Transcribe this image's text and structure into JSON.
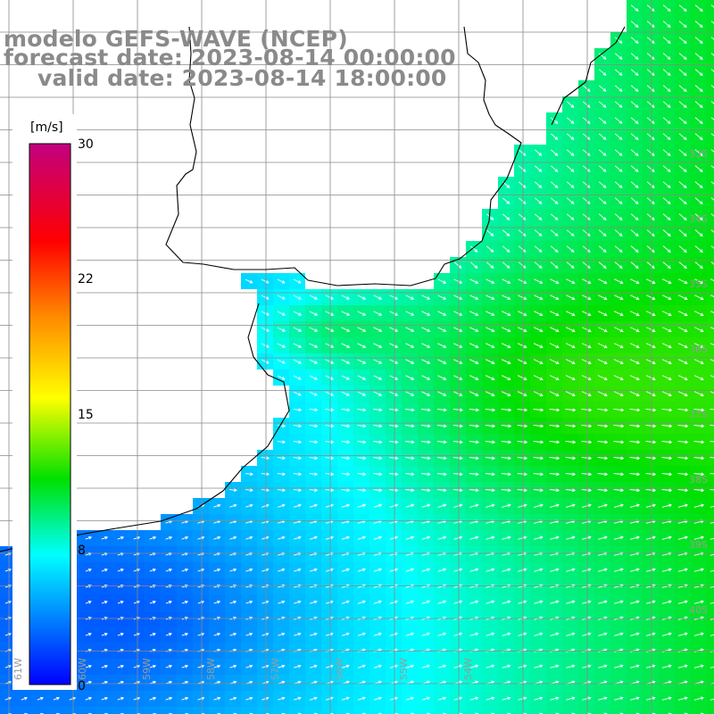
{
  "title": {
    "line1": "modelo GEFS-WAVE (NCEP)",
    "line2": "forecast date: 2023-08-14 00:00:00",
    "line3": "valid date: 2023-08-14 18:00:00"
  },
  "colorbar": {
    "unit_label": "[m/s]",
    "tick_labels": [
      "30",
      "22",
      "15",
      "8",
      "0"
    ],
    "tick_values": [
      30,
      22,
      15,
      8,
      0
    ],
    "colors": [
      "#c2007f",
      "#ff0000",
      "#ff8a00",
      "#ffff00",
      "#00e000",
      "#00ffff",
      "#0080ff",
      "#0000ff"
    ]
  },
  "grid": {
    "right_labels": [
      "33S",
      "34S",
      "35S",
      "36S",
      "37S",
      "38S",
      "39S",
      "40S"
    ],
    "bottom_labels": [
      "61W",
      "60W",
      "59W",
      "58W",
      "57W",
      "56W",
      "55W",
      "54W"
    ]
  },
  "map_data": {
    "variable": "wind speed",
    "units": "m/s",
    "color_range": [
      0,
      30
    ]
  }
}
